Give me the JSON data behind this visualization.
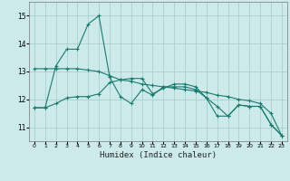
{
  "xlabel": "Humidex (Indice chaleur)",
  "bg_color": "#cceaea",
  "grid_color": "#aacfcf",
  "line_color": "#1a7a6e",
  "xlim": [
    -0.5,
    23.5
  ],
  "ylim": [
    10.5,
    15.5
  ],
  "yticks": [
    11,
    12,
    13,
    14,
    15
  ],
  "xticks": [
    0,
    1,
    2,
    3,
    4,
    5,
    6,
    7,
    8,
    9,
    10,
    11,
    12,
    13,
    14,
    15,
    16,
    17,
    18,
    19,
    20,
    21,
    22,
    23
  ],
  "series": [
    {
      "x": [
        0,
        1,
        2,
        3,
        4,
        5,
        6,
        7,
        8,
        9,
        10,
        11,
        12,
        13,
        14,
        15,
        16,
        17,
        18,
        19,
        20,
        21,
        22,
        23
      ],
      "y": [
        11.7,
        11.7,
        13.2,
        13.8,
        13.8,
        14.7,
        15.0,
        12.8,
        12.1,
        11.85,
        12.35,
        12.15,
        12.45,
        12.45,
        12.45,
        12.35,
        12.05,
        11.4,
        11.4,
        11.8,
        11.75,
        11.75,
        11.1,
        10.7
      ]
    },
    {
      "x": [
        0,
        1,
        2,
        3,
        4,
        5,
        6,
        7,
        8,
        9,
        10,
        11,
        12,
        13,
        14,
        15,
        16,
        17,
        18,
        19,
        20,
        21,
        22,
        23
      ],
      "y": [
        11.7,
        11.7,
        11.85,
        12.05,
        12.1,
        12.1,
        12.2,
        12.6,
        12.7,
        12.75,
        12.75,
        12.2,
        12.4,
        12.55,
        12.55,
        12.45,
        12.05,
        11.75,
        11.4,
        11.8,
        11.75,
        11.75,
        11.1,
        10.7
      ]
    },
    {
      "x": [
        0,
        1,
        2,
        3,
        4,
        5,
        6,
        7,
        8,
        9,
        10,
        11,
        12,
        13,
        14,
        15,
        16,
        17,
        18,
        19,
        20,
        21,
        22,
        23
      ],
      "y": [
        13.1,
        13.1,
        13.1,
        13.1,
        13.1,
        13.05,
        13.0,
        12.85,
        12.7,
        12.65,
        12.55,
        12.5,
        12.45,
        12.4,
        12.35,
        12.3,
        12.25,
        12.15,
        12.1,
        12.0,
        11.95,
        11.85,
        11.5,
        10.7
      ]
    }
  ]
}
